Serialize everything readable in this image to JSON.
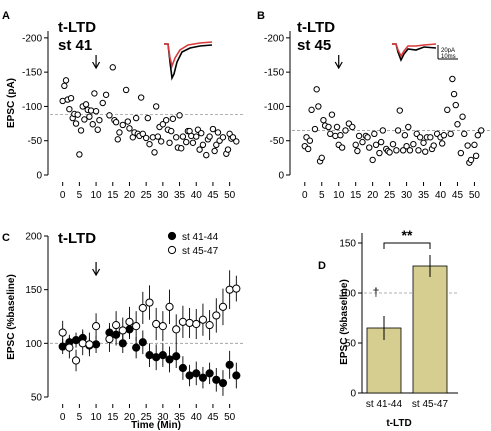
{
  "chart_data": [
    {
      "panel": "A",
      "type": "scatter",
      "title": "t-LTD",
      "subtitle": "st 41",
      "ylabel": "EPSC (pA)",
      "ylim": [
        0,
        -210
      ],
      "xlim": [
        -2,
        54
      ],
      "xticks": [
        0,
        5,
        10,
        15,
        20,
        25,
        30,
        35,
        40,
        45,
        50
      ],
      "yticks": [
        0,
        -50,
        -100,
        -150,
        -200
      ],
      "baseline": -88,
      "arrow_at": 10,
      "inset_colors": {
        "before": "#000000",
        "after": "#d93a3a"
      },
      "points": [
        [
          0,
          -108
        ],
        [
          0.5,
          -130
        ],
        [
          1,
          -138
        ],
        [
          1.5,
          -110
        ],
        [
          2,
          -96
        ],
        [
          2.5,
          -112
        ],
        [
          3,
          -83
        ],
        [
          3.5,
          -89
        ],
        [
          4,
          -75
        ],
        [
          4.5,
          -88
        ],
        [
          5,
          -30
        ],
        [
          5.5,
          -65
        ],
        [
          6,
          -100
        ],
        [
          6.5,
          -81
        ],
        [
          7,
          -103
        ],
        [
          7.5,
          -95
        ],
        [
          8,
          -85
        ],
        [
          8.5,
          -94
        ],
        [
          9,
          -74
        ],
        [
          9.5,
          -119
        ],
        [
          10,
          -93
        ],
        [
          10.5,
          -66
        ],
        [
          11,
          -80
        ],
        [
          12,
          -105
        ],
        [
          13,
          -117
        ],
        [
          14,
          -87
        ],
        [
          15,
          -157
        ],
        [
          15.5,
          -80
        ],
        [
          16,
          -77
        ],
        [
          16.5,
          -52
        ],
        [
          17,
          -62
        ],
        [
          18,
          -73
        ],
        [
          19,
          -124
        ],
        [
          19.5,
          -78
        ],
        [
          20,
          -68
        ],
        [
          21,
          -55
        ],
        [
          21.5,
          -62
        ],
        [
          22,
          -83
        ],
        [
          22.5,
          -60
        ],
        [
          23,
          -57
        ],
        [
          23.5,
          -113
        ],
        [
          24,
          -60
        ],
        [
          25,
          -54
        ],
        [
          25.5,
          -83
        ],
        [
          26,
          -45
        ],
        [
          27,
          -55
        ],
        [
          27.5,
          -33
        ],
        [
          28,
          -100
        ],
        [
          28.5,
          -56
        ],
        [
          29,
          -70
        ],
        [
          29.5,
          -49
        ],
        [
          30,
          -74
        ],
        [
          31,
          -80
        ],
        [
          31.5,
          -66
        ],
        [
          32,
          -47
        ],
        [
          32.5,
          -64
        ],
        [
          33,
          -82
        ],
        [
          34,
          -55
        ],
        [
          34.5,
          -40
        ],
        [
          35,
          -87
        ],
        [
          35.5,
          -39
        ],
        [
          36,
          -56
        ],
        [
          37,
          -48
        ],
        [
          37.5,
          -64
        ],
        [
          38,
          -64
        ],
        [
          38.5,
          -57
        ],
        [
          39,
          -47
        ],
        [
          40,
          -56
        ],
        [
          40.5,
          -66
        ],
        [
          41,
          -37
        ],
        [
          41.5,
          -61
        ],
        [
          42,
          -44
        ],
        [
          43,
          -29
        ],
        [
          43.5,
          -52
        ],
        [
          44,
          -56
        ],
        [
          45,
          -67
        ],
        [
          45.5,
          -35
        ],
        [
          46,
          -44
        ],
        [
          46.5,
          -62
        ],
        [
          47,
          -50
        ],
        [
          48,
          -55
        ],
        [
          49,
          -31
        ],
        [
          49.5,
          -37
        ],
        [
          50,
          -60
        ],
        [
          50.5,
          -53
        ],
        [
          51,
          -55
        ],
        [
          52,
          -49
        ]
      ]
    },
    {
      "panel": "B",
      "type": "scatter",
      "title": "t-LTD",
      "subtitle": "st 45",
      "ylabel": "",
      "ylim": [
        0,
        -210
      ],
      "xlim": [
        -2,
        54
      ],
      "xticks": [
        0,
        5,
        10,
        15,
        20,
        25,
        30,
        35,
        40,
        45,
        50
      ],
      "yticks": [
        0,
        -50,
        -100,
        -150,
        -200
      ],
      "baseline": -65,
      "arrow_at": 10,
      "scalebar": {
        "y_label": "20pA",
        "x_label": "10ms"
      },
      "inset_colors": {
        "before": "#000000",
        "after": "#d93a3a"
      },
      "points": [
        [
          0,
          -42
        ],
        [
          0.5,
          -55
        ],
        [
          1,
          -38
        ],
        [
          1.5,
          -50
        ],
        [
          2,
          -95
        ],
        [
          3,
          -67
        ],
        [
          3.5,
          -125
        ],
        [
          4,
          -100
        ],
        [
          4.5,
          -20
        ],
        [
          5,
          -25
        ],
        [
          5.5,
          -80
        ],
        [
          6,
          -72
        ],
        [
          7,
          -70
        ],
        [
          7.5,
          -60
        ],
        [
          8,
          -88
        ],
        [
          9,
          -57
        ],
        [
          9.5,
          -70
        ],
        [
          10,
          -44
        ],
        [
          10.5,
          -58
        ],
        [
          11,
          -40
        ],
        [
          12,
          -65
        ],
        [
          13,
          -75
        ],
        [
          14,
          -70
        ],
        [
          15,
          -44
        ],
        [
          15.5,
          -35
        ],
        [
          16,
          -57
        ],
        [
          17,
          -48
        ],
        [
          18,
          -57
        ],
        [
          18.5,
          -55
        ],
        [
          19,
          -40
        ],
        [
          20,
          -22
        ],
        [
          20.5,
          -60
        ],
        [
          21,
          -44
        ],
        [
          22,
          -32
        ],
        [
          22.5,
          -48
        ],
        [
          23,
          -65
        ],
        [
          24,
          -38
        ],
        [
          24.5,
          -35
        ],
        [
          25,
          -33
        ],
        [
          26,
          -45
        ],
        [
          27,
          -36
        ],
        [
          27.5,
          -65
        ],
        [
          28,
          -94
        ],
        [
          29,
          -36
        ],
        [
          29.5,
          -58
        ],
        [
          30,
          -42
        ],
        [
          30.5,
          -70
        ],
        [
          31,
          -36
        ],
        [
          32,
          -45
        ],
        [
          33,
          -60
        ],
        [
          33.5,
          -36
        ],
        [
          34,
          -55
        ],
        [
          35,
          -47
        ],
        [
          35.5,
          -34
        ],
        [
          36,
          -55
        ],
        [
          37,
          -55
        ],
        [
          37.5,
          -38
        ],
        [
          38,
          -43
        ],
        [
          39,
          -60
        ],
        [
          40,
          -55
        ],
        [
          40.5,
          -46
        ],
        [
          41,
          -58
        ],
        [
          42,
          -95
        ],
        [
          43,
          -60
        ],
        [
          43.5,
          -140
        ],
        [
          44,
          -118
        ],
        [
          44.5,
          -102
        ],
        [
          45,
          -74
        ],
        [
          46,
          -32
        ],
        [
          46.5,
          -85
        ],
        [
          47,
          -60
        ],
        [
          48,
          -43
        ],
        [
          48.5,
          -18
        ],
        [
          49,
          -22
        ],
        [
          50,
          -44
        ],
        [
          50.5,
          -28
        ],
        [
          51,
          -58
        ],
        [
          52,
          -65
        ]
      ]
    },
    {
      "panel": "C",
      "type": "scatter",
      "title": "t-LTD",
      "xlabel": "Time (Min)",
      "ylabel": "EPSC (%baseline)",
      "ylim": [
        50,
        200
      ],
      "xlim": [
        -2,
        54
      ],
      "xticks": [
        0,
        5,
        10,
        15,
        20,
        25,
        30,
        35,
        40,
        45,
        50
      ],
      "yticks": [
        50,
        100,
        150,
        200
      ],
      "baseline": 100,
      "arrow_at": 10,
      "series": [
        {
          "name": "st 41-44",
          "x": [
            0,
            2,
            4,
            6,
            8,
            10,
            14,
            16,
            18,
            20,
            22,
            24,
            26,
            28,
            30,
            32,
            34,
            36,
            38,
            40,
            42,
            44,
            46,
            48,
            50,
            52
          ],
          "y": [
            97,
            101,
            103,
            105,
            98,
            99,
            110,
            108,
            100,
            113,
            96,
            101,
            89,
            87,
            89,
            85,
            88,
            77,
            70,
            72,
            68,
            72,
            66,
            63,
            80,
            70
          ],
          "err": [
            7,
            7,
            7,
            8,
            7,
            8,
            9,
            10,
            9,
            9,
            10,
            11,
            11,
            12,
            11,
            12,
            11,
            11,
            10,
            11,
            10,
            10,
            11,
            12,
            13,
            12
          ]
        },
        {
          "name": "st 45-47",
          "x": [
            0,
            2,
            4,
            6,
            8,
            10,
            14,
            16,
            18,
            20,
            22,
            24,
            26,
            28,
            30,
            32,
            34,
            36,
            38,
            40,
            42,
            44,
            46,
            48,
            50,
            52
          ],
          "y": [
            110,
            96,
            84,
            100,
            99,
            116,
            104,
            117,
            112,
            120,
            116,
            133,
            138,
            118,
            116,
            134,
            113,
            120,
            119,
            118,
            122,
            117,
            126,
            134,
            150,
            151
          ],
          "err": [
            11,
            10,
            10,
            11,
            11,
            12,
            12,
            13,
            12,
            14,
            14,
            15,
            16,
            15,
            14,
            16,
            14,
            15,
            14,
            14,
            15,
            14,
            16,
            17,
            18,
            12
          ]
        }
      ]
    },
    {
      "panel": "D",
      "type": "bar",
      "xlabel": "t-LTD",
      "ylabel": "EPSC (%baseline)",
      "ylim": [
        0,
        160
      ],
      "yticks": [
        0,
        50,
        100,
        150
      ],
      "categories": [
        "st 41-44",
        "st 45-47"
      ],
      "values": [
        65,
        127
      ],
      "errors": [
        12,
        11
      ],
      "bar_color": "#d6cd91",
      "baseline": 100,
      "annotations": {
        "dagger": "†",
        "significance": "**"
      }
    }
  ]
}
